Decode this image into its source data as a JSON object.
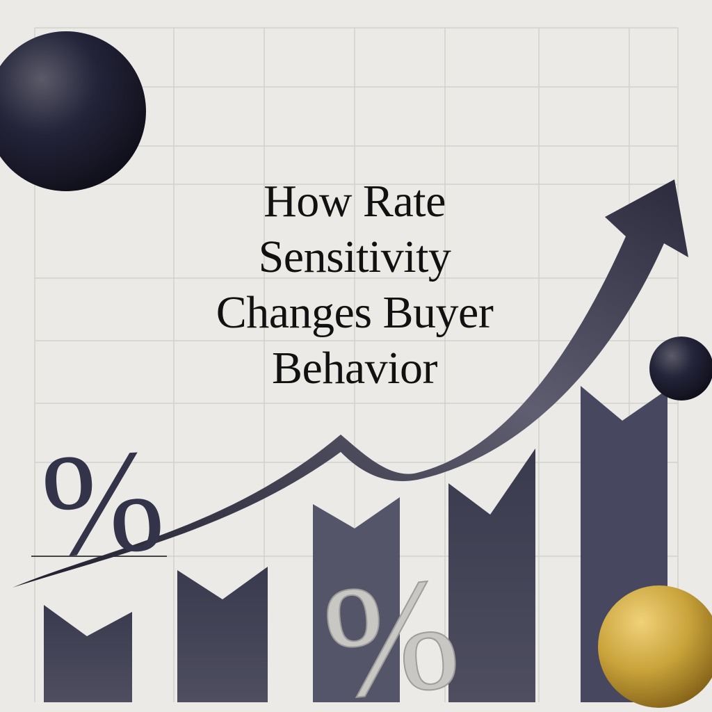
{
  "title": {
    "lines": [
      "How Rate",
      "Sensitivity",
      "Changes Buyer",
      "Behavior"
    ]
  },
  "decor": {
    "percent_symbol": "%",
    "colors": {
      "background": "#ebeae6",
      "bars": "#3b3b4e",
      "arrow": "#2c2c3e",
      "dark_sphere": "#1e1e2c",
      "gold_sphere": "#c9a23a"
    }
  }
}
